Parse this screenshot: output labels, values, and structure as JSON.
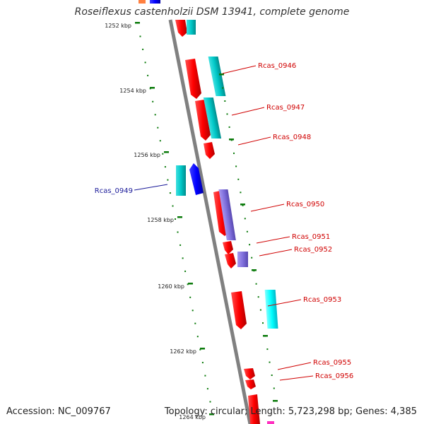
{
  "title": "Roseiflexus castenholzii DSM 13941, complete genome",
  "footer": {
    "accession": "Accession: NC_009767",
    "stats": "Topology: circular; Length: 5,723,298 bp; Genes: 4,385"
  },
  "colors": {
    "forward_strand": "#ff0000",
    "reverse_strand": "#0000ff",
    "cog_teal": "#00c8c8",
    "cog_cyan": "#00ffff",
    "cog_violet": "#8070dd",
    "kbp_tick": "#0a7a0a",
    "backbone": "#808080",
    "label_red": "#d00000",
    "label_blue": "#1a1a99"
  },
  "ticks": [
    {
      "label": "1252 kbp"
    },
    {
      "label": "1254 kbp"
    },
    {
      "label": "1256 kbp"
    },
    {
      "label": "1258 kbp"
    },
    {
      "label": "1260 kbp"
    },
    {
      "label": "1262 kbp"
    },
    {
      "label": "1264 kbp"
    }
  ],
  "gene_labels": [
    {
      "name": "Rcas_0946",
      "strand": "forward"
    },
    {
      "name": "Rcas_0947",
      "strand": "forward"
    },
    {
      "name": "Rcas_0948",
      "strand": "forward"
    },
    {
      "name": "Rcas_0949",
      "strand": "reverse"
    },
    {
      "name": "Rcas_0950",
      "strand": "forward"
    },
    {
      "name": "Rcas_0951",
      "strand": "forward"
    },
    {
      "name": "Rcas_0952",
      "strand": "forward"
    },
    {
      "name": "Rcas_0953",
      "strand": "forward"
    },
    {
      "name": "Rcas_0955",
      "strand": "forward"
    },
    {
      "name": "Rcas_0956",
      "strand": "forward"
    }
  ]
}
